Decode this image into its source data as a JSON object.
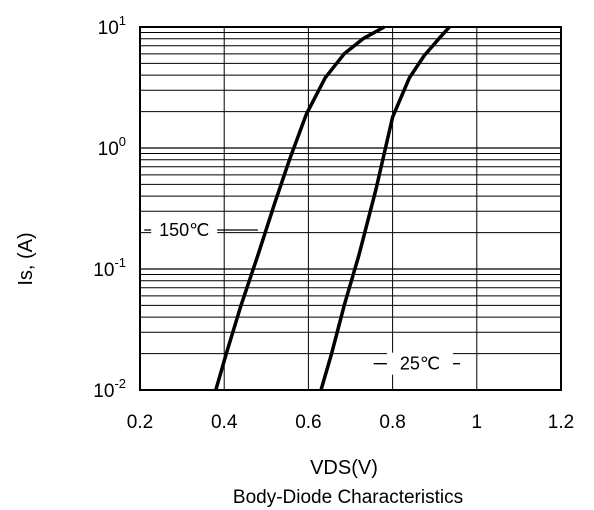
{
  "chart_data": {
    "type": "line",
    "title": "Body-Diode Characteristics",
    "xlabel": "VDS(V)",
    "ylabel": "Is, (A)",
    "xlim": [
      0.2,
      1.2
    ],
    "ylim": [
      0.01,
      10
    ],
    "yscale": "log",
    "grid": true,
    "x_ticks": [
      "0.2",
      "0.4",
      "0.6",
      "0.8",
      "1",
      "1.2"
    ],
    "y_ticks": [
      {
        "base": "10",
        "exp": "-2"
      },
      {
        "base": "10",
        "exp": "-1"
      },
      {
        "base": "10",
        "exp": "0"
      },
      {
        "base": "10",
        "exp": "1"
      }
    ],
    "series": [
      {
        "name": "150℃",
        "x": [
          0.38,
          0.405,
          0.44,
          0.48,
          0.52,
          0.555,
          0.595,
          0.64,
          0.685,
          0.73,
          0.78
        ],
        "y": [
          0.01,
          0.02,
          0.05,
          0.13,
          0.35,
          0.8,
          1.9,
          3.8,
          6.0,
          8.0,
          10
        ]
      },
      {
        "name": "25℃",
        "x": [
          0.63,
          0.655,
          0.685,
          0.72,
          0.76,
          0.8,
          0.84,
          0.875,
          0.91,
          0.935
        ],
        "y": [
          0.01,
          0.02,
          0.05,
          0.13,
          0.45,
          1.8,
          3.8,
          5.8,
          8.0,
          10
        ]
      }
    ],
    "annotations": [
      {
        "text": "150℃",
        "series": 0
      },
      {
        "text": "25℃",
        "series": 1
      }
    ]
  },
  "colors": {
    "line": "#000000",
    "grid": "#000000",
    "background": "#ffffff"
  }
}
